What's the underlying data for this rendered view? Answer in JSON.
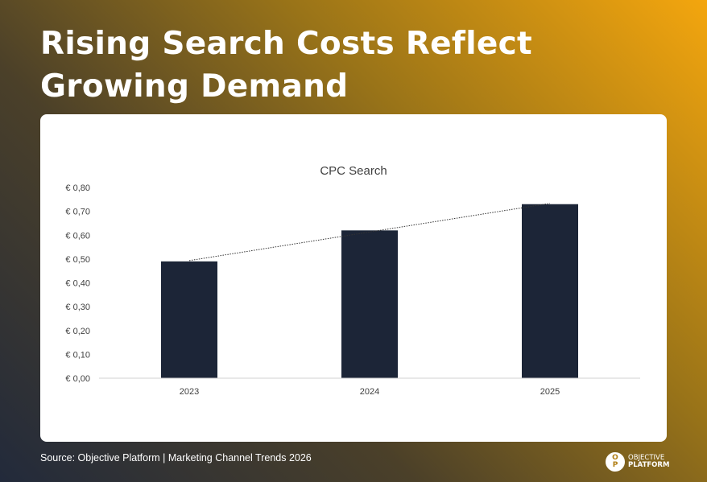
{
  "header": {
    "title": "Rising Search Costs Reflect Growing Demand"
  },
  "footer": {
    "source": "Source: Objective Platform | Marketing Channel Trends 2026",
    "logo_mark_top": "O",
    "logo_mark_bottom": "P",
    "logo_line1": "OBJECTIVE",
    "logo_line2": "PLATFORM"
  },
  "chart_data": {
    "type": "bar",
    "title": "CPC Search",
    "categories": [
      "2023",
      "2024",
      "2025"
    ],
    "values": [
      0.49,
      0.62,
      0.73
    ],
    "ylim": [
      0,
      0.8
    ],
    "yticks": [
      0,
      0.1,
      0.2,
      0.3,
      0.4,
      0.5,
      0.6,
      0.7,
      0.8
    ],
    "ytick_labels": [
      "€ 0,00",
      "€ 0,10",
      "€ 0,20",
      "€ 0,30",
      "€ 0,40",
      "€ 0,50",
      "€ 0,60",
      "€ 0,70",
      "€ 0,80"
    ],
    "trendline": "linear, dotted",
    "bar_color": "#1c2537",
    "grid": false,
    "legend": "none"
  }
}
